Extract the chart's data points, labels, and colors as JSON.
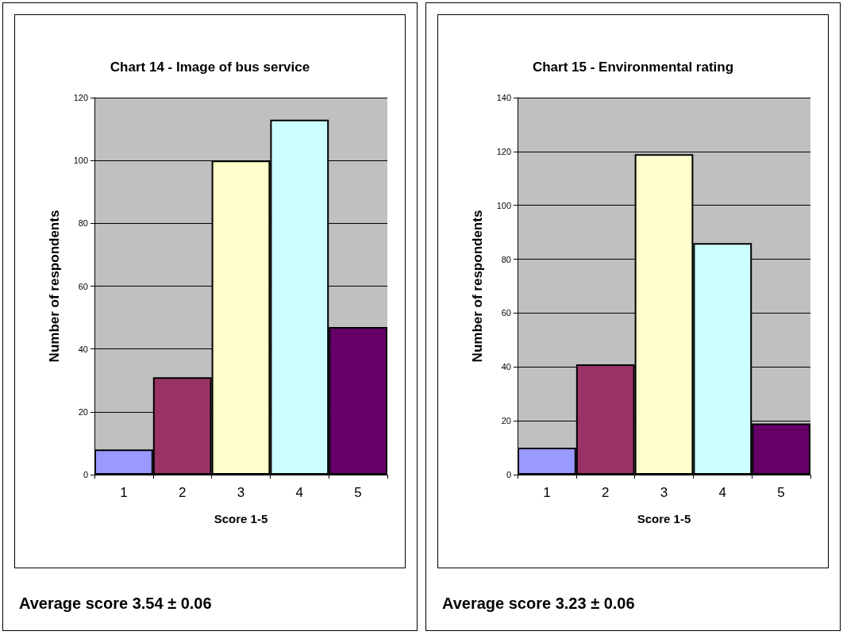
{
  "chart_data": [
    {
      "type": "bar",
      "title": "Chart 14 - Image of bus service",
      "xlabel": "Score 1-5",
      "ylabel": "Number of respondents",
      "categories": [
        "1",
        "2",
        "3",
        "4",
        "5"
      ],
      "values": [
        8,
        31,
        100,
        113,
        47
      ],
      "colors": [
        "#9999ff",
        "#993366",
        "#ffffcc",
        "#ccffff",
        "#660066"
      ],
      "ylim": [
        0,
        120
      ],
      "yticks": [
        0,
        20,
        40,
        60,
        80,
        100,
        120
      ],
      "grid": "y",
      "annotations": [
        "Average score 3.54 ± 0.06"
      ]
    },
    {
      "type": "bar",
      "title": "Chart 15 - Environmental rating",
      "xlabel": "Score 1-5",
      "ylabel": "Number of respondents",
      "categories": [
        "1",
        "2",
        "3",
        "4",
        "5"
      ],
      "values": [
        10,
        41,
        119,
        86,
        19
      ],
      "colors": [
        "#9999ff",
        "#993366",
        "#ffffcc",
        "#ccffff",
        "#660066"
      ],
      "ylim": [
        0,
        140
      ],
      "yticks": [
        0,
        20,
        40,
        60,
        80,
        100,
        120,
        140
      ],
      "grid": "y",
      "annotations": [
        "Average score 3.23 ± 0.06"
      ]
    }
  ]
}
